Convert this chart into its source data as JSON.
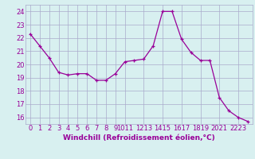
{
  "x": [
    0,
    1,
    2,
    3,
    4,
    5,
    6,
    7,
    8,
    9,
    10,
    11,
    12,
    13,
    14,
    15,
    16,
    17,
    18,
    19,
    20,
    21,
    22,
    23
  ],
  "y": [
    22.3,
    21.4,
    20.5,
    19.4,
    19.2,
    19.3,
    19.3,
    18.8,
    18.8,
    19.3,
    20.2,
    20.3,
    20.4,
    21.4,
    24.0,
    24.0,
    21.9,
    20.9,
    20.3,
    20.3,
    17.5,
    16.5,
    16.0,
    15.7
  ],
  "line_color": "#990099",
  "marker": "+",
  "bg_color": "#d8f0f0",
  "grid_color": "#aaaacc",
  "xlabel": "Windchill (Refroidissement éolien,°C)",
  "ylim": [
    15.5,
    24.5
  ],
  "yticks": [
    16,
    17,
    18,
    19,
    20,
    21,
    22,
    23,
    24
  ],
  "tick_color": "#990099",
  "xlabel_fontsize": 6.5,
  "tick_fontsize": 6.0,
  "fig_width": 3.2,
  "fig_height": 2.0,
  "dpi": 100
}
